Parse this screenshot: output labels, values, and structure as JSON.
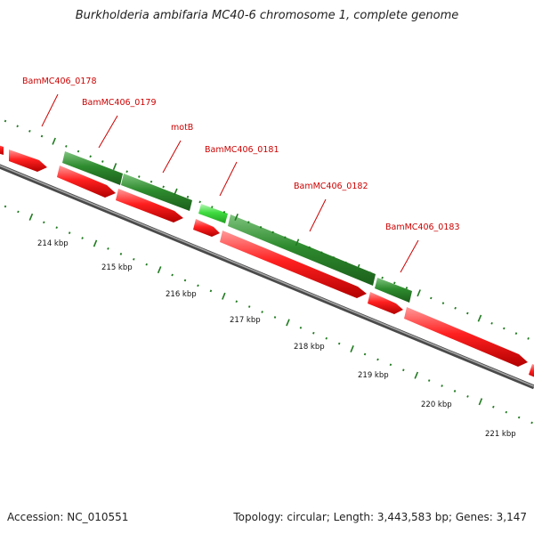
{
  "title": "Burkholderia ambifaria MC40-6 chromosome 1, complete genome",
  "footer": {
    "accession": "Accession: NC_010551",
    "summary": "Topology: circular; Length: 3,443,583 bp; Genes: 3,147"
  },
  "colors": {
    "label_red": "#cc0000",
    "gene_red": "#ff1a1a",
    "gene_dark_green": "#2e8b2e",
    "gene_light_green": "#44dd44",
    "backbone": "#7a7a7a",
    "tick_green": "#1f7a1f"
  },
  "gene_labels": [
    {
      "text": "BamMC406_0178"
    },
    {
      "text": "BamMC406_0179"
    },
    {
      "text": "motB"
    },
    {
      "text": "BamMC406_0181"
    },
    {
      "text": "BamMC406_0182"
    },
    {
      "text": "BamMC406_0183"
    }
  ],
  "ticks": [
    {
      "label": "214 kbp"
    },
    {
      "label": "215 kbp"
    },
    {
      "label": "216 kbp"
    },
    {
      "label": "217 kbp"
    },
    {
      "label": "218 kbp"
    },
    {
      "label": "219 kbp"
    },
    {
      "label": "220 kbp"
    },
    {
      "label": "221 kbp"
    }
  ]
}
